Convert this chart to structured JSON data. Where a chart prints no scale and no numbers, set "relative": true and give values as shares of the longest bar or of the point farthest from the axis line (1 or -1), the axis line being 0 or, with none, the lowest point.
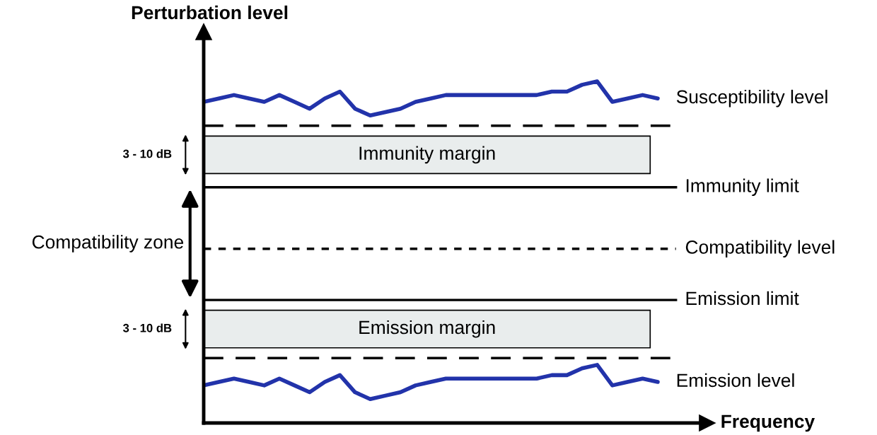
{
  "chart_data": {
    "type": "line",
    "relative": true,
    "xlabel": "Frequency",
    "ylabel": "Perturbation level",
    "categories": [
      null,
      null,
      null,
      null,
      null,
      null,
      null,
      null,
      null,
      null,
      null,
      null,
      null,
      null,
      null,
      null,
      null,
      null,
      null,
      null,
      null,
      null,
      null,
      null,
      null,
      null,
      null,
      null,
      null,
      null,
      null
    ],
    "series": [
      {
        "name": "Susceptibility level",
        "color": "#2233aa",
        "values": [
          0.94,
          0.95,
          0.96,
          0.95,
          0.94,
          0.96,
          0.94,
          0.92,
          0.95,
          0.97,
          0.92,
          0.9,
          0.91,
          0.92,
          0.94,
          0.95,
          0.96,
          0.96,
          0.96,
          0.96,
          0.96,
          0.96,
          0.96,
          0.97,
          0.97,
          0.99,
          1.0,
          0.94,
          0.95,
          0.96,
          0.95
        ]
      },
      {
        "name": "Emission level",
        "color": "#2233aa",
        "values": [
          0.11,
          0.12,
          0.13,
          0.12,
          0.11,
          0.13,
          0.11,
          0.09,
          0.12,
          0.14,
          0.09,
          0.07,
          0.08,
          0.09,
          0.11,
          0.12,
          0.13,
          0.13,
          0.13,
          0.13,
          0.13,
          0.13,
          0.13,
          0.14,
          0.14,
          0.16,
          0.17,
          0.11,
          0.12,
          0.13,
          0.12
        ]
      }
    ],
    "ref_lines": [
      {
        "axis": "y",
        "value": 0.87,
        "label": null,
        "color": "#000000",
        "line_style": "dashed"
      },
      {
        "axis": "y",
        "value": 0.69,
        "label": "Immunity limit",
        "color": "#000000",
        "line_style": "solid"
      },
      {
        "axis": "y",
        "value": 0.51,
        "label": "Compatibility level",
        "color": "#000000",
        "line_style": "dotted"
      },
      {
        "axis": "y",
        "value": 0.36,
        "label": "Emission limit",
        "color": "#000000",
        "line_style": "solid"
      },
      {
        "axis": "y",
        "value": 0.19,
        "label": null,
        "color": "#000000",
        "line_style": "dashed"
      }
    ],
    "bands": [
      {
        "axis": "y",
        "from": 0.73,
        "to": 0.84,
        "label": "Immunity margin",
        "color": "#e9eded"
      },
      {
        "axis": "y",
        "from": 0.22,
        "to": 0.33,
        "label": "Emission margin",
        "color": "#e9eded"
      }
    ],
    "annotations": [
      "3 - 10 dB",
      "Compatibility zone",
      "3 - 10 dB"
    ]
  }
}
